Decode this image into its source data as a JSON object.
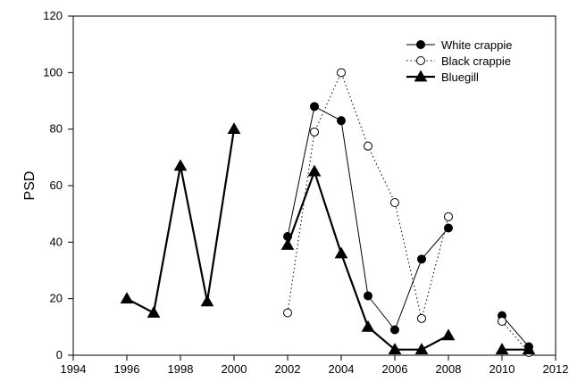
{
  "chart_data": {
    "type": "line",
    "title": "",
    "xlabel": "",
    "ylabel": "PSD",
    "xlim": [
      1994,
      2012
    ],
    "ylim": [
      0,
      120
    ],
    "x_ticks": [
      "1994",
      "1996",
      "1998",
      "2000",
      "2002",
      "2004",
      "2006",
      "2008",
      "2010",
      "2012"
    ],
    "y_ticks": [
      "0",
      "20",
      "40",
      "60",
      "80",
      "100",
      "120"
    ],
    "grid": false,
    "legend_position": "top-right",
    "series": [
      {
        "name": "White crappie",
        "marker": "filled-circle",
        "line_style": "solid-thin",
        "color": "#000000",
        "segments": [
          [
            {
              "x": 2002,
              "y": 42
            },
            {
              "x": 2003,
              "y": 88
            },
            {
              "x": 2004,
              "y": 83
            },
            {
              "x": 2005,
              "y": 21
            },
            {
              "x": 2006,
              "y": 9
            },
            {
              "x": 2007,
              "y": 34
            },
            {
              "x": 2008,
              "y": 45
            }
          ],
          [
            {
              "x": 2010,
              "y": 14
            },
            {
              "x": 2011,
              "y": 3
            }
          ]
        ]
      },
      {
        "name": "Black crappie",
        "marker": "open-circle",
        "line_style": "dotted",
        "color": "#000000",
        "segments": [
          [
            {
              "x": 2002,
              "y": 15
            },
            {
              "x": 2003,
              "y": 79
            },
            {
              "x": 2004,
              "y": 100
            },
            {
              "x": 2005,
              "y": 74
            },
            {
              "x": 2006,
              "y": 54
            },
            {
              "x": 2007,
              "y": 13
            },
            {
              "x": 2008,
              "y": 49
            }
          ],
          [
            {
              "x": 2010,
              "y": 12
            },
            {
              "x": 2011,
              "y": 1
            }
          ]
        ]
      },
      {
        "name": "Bluegill",
        "marker": "filled-triangle",
        "line_style": "solid-thick",
        "color": "#000000",
        "segments": [
          [
            {
              "x": 1996,
              "y": 20
            },
            {
              "x": 1997,
              "y": 15
            },
            {
              "x": 1998,
              "y": 67
            },
            {
              "x": 1999,
              "y": 19
            },
            {
              "x": 2000,
              "y": 80
            }
          ],
          [
            {
              "x": 2002,
              "y": 39
            },
            {
              "x": 2003,
              "y": 65
            },
            {
              "x": 2004,
              "y": 36
            },
            {
              "x": 2005,
              "y": 10
            },
            {
              "x": 2006,
              "y": 2
            },
            {
              "x": 2007,
              "y": 2
            },
            {
              "x": 2008,
              "y": 7
            }
          ],
          [
            {
              "x": 2010,
              "y": 2
            },
            {
              "x": 2011,
              "y": 2
            }
          ]
        ]
      }
    ]
  }
}
